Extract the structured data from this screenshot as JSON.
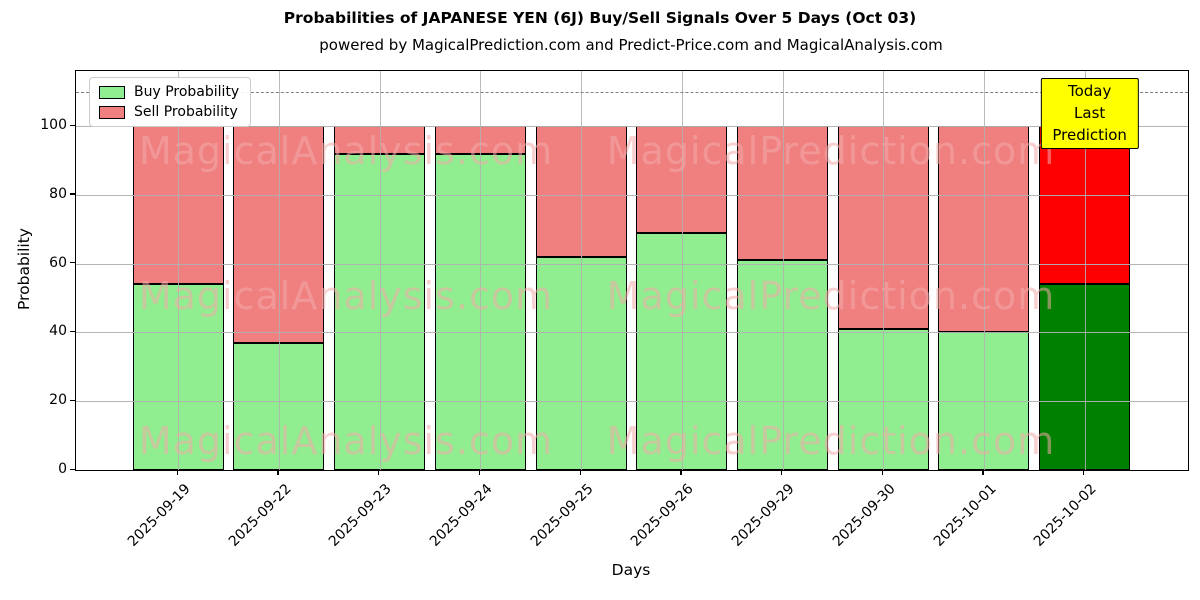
{
  "title": "Probabilities of JAPANESE YEN (6J) Buy/Sell Signals Over 5 Days (Oct 03)",
  "subtitle": "powered by MagicalPrediction.com and Predict-Price.com and MagicalAnalysis.com",
  "legend": {
    "buy_label": "Buy Probability",
    "sell_label": "Sell Probability"
  },
  "annotation": {
    "line1": "Today",
    "line2": "Last Prediction",
    "bg_color": "#ffff00"
  },
  "watermarks": {
    "left_text": "MagicalAnalysis.com",
    "right_text": "MagicalPrediction.com"
  },
  "chart_data": {
    "type": "bar",
    "stacked": true,
    "title": "Probabilities of JAPANESE YEN (6J) Buy/Sell Signals Over 5 Days (Oct 03)",
    "xlabel": "Days",
    "ylabel": "Probability",
    "categories": [
      "2025-09-19",
      "2025-09-22",
      "2025-09-23",
      "2025-09-24",
      "2025-09-25",
      "2025-09-26",
      "2025-09-29",
      "2025-09-30",
      "2025-10-01",
      "2025-10-02"
    ],
    "series": [
      {
        "name": "Buy Probability",
        "values": [
          54,
          37,
          92,
          92,
          62,
          69,
          61,
          41,
          40,
          54
        ],
        "color": "#90ee90",
        "today_color": "#008000"
      },
      {
        "name": "Sell Probability",
        "values": [
          46,
          63,
          8,
          8,
          38,
          31,
          39,
          59,
          60,
          46
        ],
        "color": "#f08080",
        "today_color": "#ff0000"
      }
    ],
    "today_category": "2025-10-02",
    "yticks": [
      0,
      20,
      40,
      60,
      80,
      100
    ],
    "ylim": [
      0,
      116
    ],
    "dashed_line_y": 110,
    "grid": true,
    "legend_position": "upper left"
  }
}
